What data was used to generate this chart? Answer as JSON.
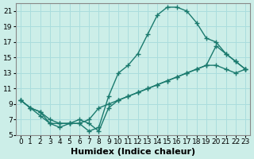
{
  "background_color": "#cceee8",
  "grid_color": "#aadddd",
  "line_color": "#1a7a6e",
  "xlim": [
    -0.5,
    23.5
  ],
  "ylim": [
    5,
    22
  ],
  "xticks": [
    0,
    1,
    2,
    3,
    4,
    5,
    6,
    7,
    8,
    9,
    10,
    11,
    12,
    13,
    14,
    15,
    16,
    17,
    18,
    19,
    20,
    21,
    22,
    23
  ],
  "yticks": [
    5,
    7,
    9,
    11,
    13,
    15,
    17,
    19,
    21
  ],
  "xlabel": "Humidex (Indice chaleur)",
  "line1_x": [
    0,
    1,
    2,
    3,
    4,
    5,
    6,
    7,
    8,
    9,
    10,
    11,
    12,
    13,
    14,
    15,
    16,
    17,
    18,
    19,
    20,
    21,
    22,
    23
  ],
  "line1_y": [
    9.5,
    8.5,
    7.5,
    6.5,
    6.5,
    6.5,
    6.5,
    5.5,
    6.0,
    10.0,
    13.0,
    14.0,
    15.5,
    18.0,
    20.5,
    21.5,
    21.5,
    21.0,
    19.5,
    17.5,
    17.0,
    15.5,
    14.5,
    13.5
  ],
  "line2_x": [
    0,
    1,
    2,
    3,
    4,
    5,
    6,
    7,
    8,
    9,
    10,
    11,
    12,
    13,
    14,
    15,
    16,
    17,
    18,
    19,
    20,
    21,
    22,
    23
  ],
  "line2_y": [
    9.5,
    8.5,
    8.0,
    7.0,
    6.5,
    6.5,
    6.5,
    7.0,
    8.5,
    9.0,
    9.5,
    10.0,
    10.5,
    11.0,
    11.5,
    12.0,
    12.5,
    13.0,
    13.5,
    14.0,
    14.0,
    13.5,
    13.0,
    13.5
  ],
  "line3_x": [
    0,
    1,
    2,
    3,
    4,
    5,
    6,
    7,
    8,
    9,
    10,
    11,
    12,
    13,
    14,
    15,
    16,
    17,
    18,
    19,
    20,
    21,
    22,
    23
  ],
  "line3_y": [
    9.5,
    8.5,
    8.0,
    6.5,
    6.0,
    6.5,
    7.0,
    6.5,
    5.5,
    8.5,
    9.5,
    10.0,
    10.5,
    11.0,
    11.5,
    12.0,
    12.5,
    13.0,
    13.5,
    14.0,
    16.5,
    15.5,
    14.5,
    13.5
  ],
  "tick_fontsize": 6.5,
  "xlabel_fontsize": 8
}
